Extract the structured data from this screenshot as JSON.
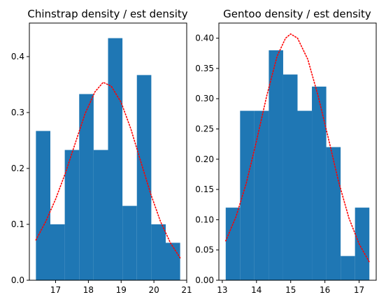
{
  "chart_data": [
    {
      "type": "histogram",
      "title": "Chinstrap density / est density",
      "xlim": [
        16.2,
        21
      ],
      "ylim": [
        0,
        0.46
      ],
      "xticks": [
        "17",
        "18",
        "19",
        "20",
        "21"
      ],
      "yticks": [
        "0.0",
        "0.1",
        "0.2",
        "0.3",
        "0.4"
      ],
      "bins": [
        16.4,
        16.84,
        17.28,
        17.72,
        18.16,
        18.6,
        19.04,
        19.48,
        19.92,
        20.36,
        20.8
      ],
      "values": [
        0.267,
        0.1,
        0.233,
        0.333,
        0.233,
        0.433,
        0.133,
        0.367,
        0.1,
        0.067
      ],
      "bar_color": "#1f77b4",
      "curve": {
        "style": "dotted",
        "color": "#ff0000",
        "x": [
          16.4,
          16.7,
          17.0,
          17.3,
          17.6,
          17.9,
          18.2,
          18.45,
          18.7,
          19.0,
          19.3,
          19.6,
          19.9,
          20.2,
          20.5,
          20.8
        ],
        "y": [
          0.072,
          0.105,
          0.145,
          0.192,
          0.245,
          0.298,
          0.337,
          0.354,
          0.347,
          0.318,
          0.27,
          0.212,
          0.155,
          0.105,
          0.067,
          0.04
        ]
      }
    },
    {
      "type": "histogram",
      "title": "Gentoo density / est density",
      "xlim": [
        12.9,
        17.5
      ],
      "ylim": [
        0,
        0.425
      ],
      "xticks": [
        "13",
        "14",
        "15",
        "16",
        "17"
      ],
      "yticks": [
        "0.00",
        "0.05",
        "0.10",
        "0.15",
        "0.20",
        "0.25",
        "0.30",
        "0.35",
        "0.40"
      ],
      "bins": [
        13.1,
        13.52,
        13.94,
        14.36,
        14.78,
        15.2,
        15.62,
        16.04,
        16.46,
        16.88,
        17.3
      ],
      "values": [
        0.12,
        0.28,
        0.28,
        0.38,
        0.34,
        0.28,
        0.32,
        0.22,
        0.04,
        0.12
      ],
      "bar_color": "#1f77b4",
      "curve": {
        "style": "dotted",
        "color": "#ff0000",
        "x": [
          13.1,
          13.4,
          13.7,
          14.0,
          14.3,
          14.6,
          14.85,
          15.0,
          15.2,
          15.5,
          15.8,
          16.1,
          16.4,
          16.7,
          17.0,
          17.3
        ],
        "y": [
          0.065,
          0.105,
          0.16,
          0.23,
          0.305,
          0.37,
          0.4,
          0.407,
          0.4,
          0.365,
          0.305,
          0.235,
          0.163,
          0.103,
          0.06,
          0.03
        ]
      }
    }
  ]
}
